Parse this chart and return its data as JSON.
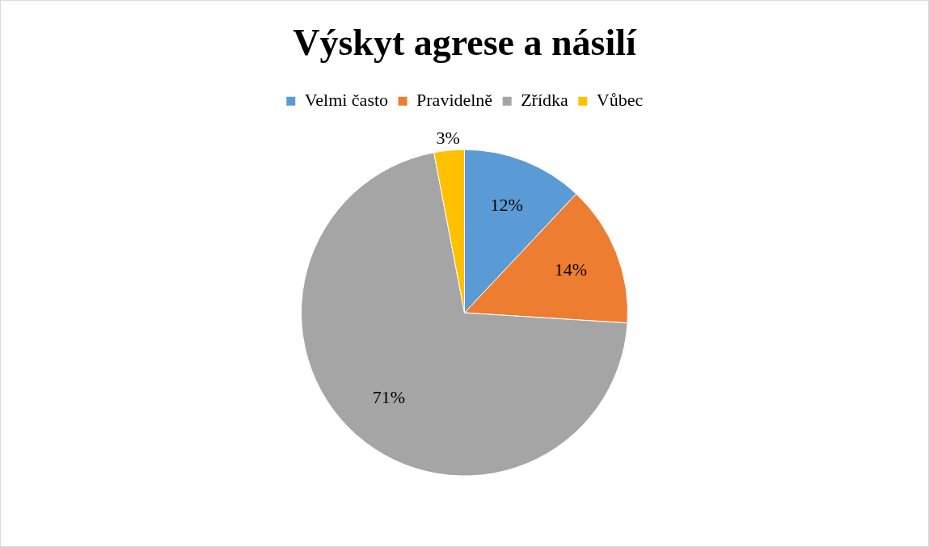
{
  "chart_data": {
    "type": "pie",
    "title": "Výskyt agrese a násilí",
    "categories": [
      "Velmi často",
      "Pravidelně",
      "Zřídka",
      "Vůbec"
    ],
    "values": [
      12,
      14,
      71,
      3
    ],
    "colors": [
      "#5b9bd5",
      "#ed7d31",
      "#a5a5a5",
      "#ffc000"
    ],
    "value_labels": [
      "12%",
      "14%",
      "71%",
      "3%"
    ],
    "legend": "top"
  }
}
